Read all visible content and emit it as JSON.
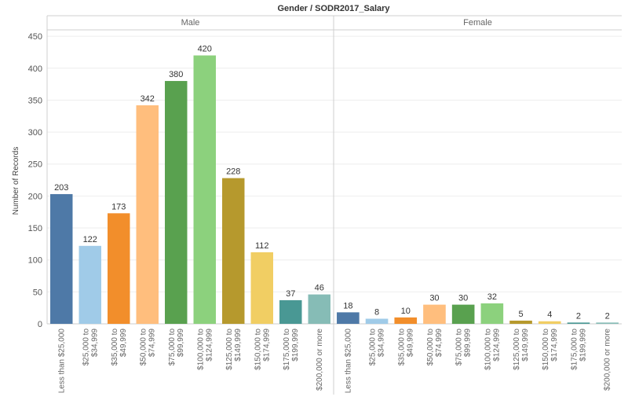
{
  "chart_data": {
    "type": "bar",
    "title": "Gender / SODR2017_Salary",
    "ylabel": "Number of Records",
    "xlabel": "",
    "ylim": [
      0,
      460
    ],
    "yticks": [
      0,
      50,
      100,
      150,
      200,
      250,
      300,
      350,
      400,
      450
    ],
    "grid": true,
    "legend": "none",
    "categories": [
      [
        "Less than $25,000"
      ],
      [
        "$25,000 to",
        "$34,999"
      ],
      [
        "$35,000 to",
        "$49,999"
      ],
      [
        "$50,000 to",
        "$74,999"
      ],
      [
        "$75,000 to",
        "$99,999"
      ],
      [
        "$100,000 to",
        "$124,999"
      ],
      [
        "$125,000 to",
        "$149,999"
      ],
      [
        "$150,000 to",
        "$174,999"
      ],
      [
        "$175,000 to",
        "$199,999"
      ],
      [
        "$200,000 or more"
      ]
    ],
    "colors": [
      "#4e79a7",
      "#a0cbe8",
      "#f28e2b",
      "#ffbe7d",
      "#59a14f",
      "#8cd17d",
      "#b6992d",
      "#f1ce63",
      "#499894",
      "#86bcb6"
    ],
    "panels": [
      {
        "name": "Male",
        "values": [
          203,
          122,
          173,
          342,
          380,
          420,
          228,
          112,
          37,
          46
        ]
      },
      {
        "name": "Female",
        "values": [
          18,
          8,
          10,
          30,
          30,
          32,
          5,
          4,
          2,
          2
        ]
      }
    ]
  }
}
